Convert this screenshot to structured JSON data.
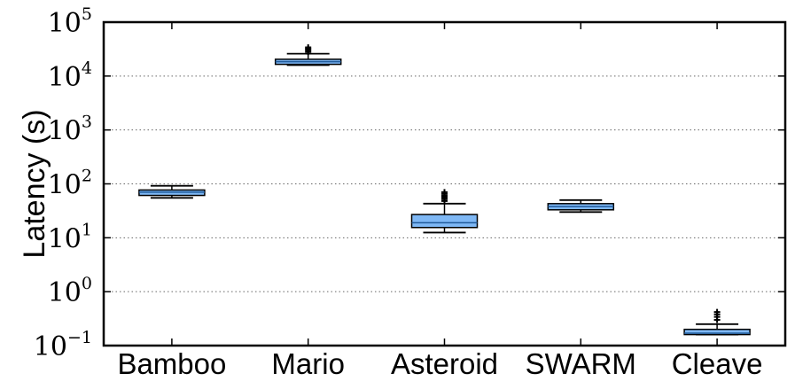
{
  "chart_data": {
    "type": "box",
    "title": "",
    "xlabel": "",
    "ylabel": "Latency (s)",
    "yscale": "log",
    "ylim": [
      0.1,
      100000
    ],
    "yticks": [
      {
        "value": 0.1,
        "base": "10",
        "exp": "−1"
      },
      {
        "value": 1,
        "base": "10",
        "exp": "0"
      },
      {
        "value": 10,
        "base": "10",
        "exp": "1"
      },
      {
        "value": 100,
        "base": "10",
        "exp": "2"
      },
      {
        "value": 1000,
        "base": "10",
        "exp": "3"
      },
      {
        "value": 10000,
        "base": "10",
        "exp": "4"
      },
      {
        "value": 100000,
        "base": "10",
        "exp": "5"
      }
    ],
    "grid": "horizontal-dotted",
    "box_color": "#7fb8f5",
    "categories": [
      "Bamboo",
      "Mario",
      "Asteroid",
      "SWARM",
      "Cleave"
    ],
    "boxes": [
      {
        "category": "Bamboo",
        "whisker_low": 55,
        "q1": 61,
        "median": 70,
        "q3": 77,
        "whisker_high": 92,
        "outliers": []
      },
      {
        "category": "Mario",
        "whisker_low": 16000,
        "q1": 16500,
        "median": 18500,
        "q3": 20500,
        "whisker_high": 26000,
        "outliers": [
          28000,
          30000,
          32000,
          34000
        ]
      },
      {
        "category": "Asteroid",
        "whisker_low": 12.5,
        "q1": 15.5,
        "median": 19,
        "q3": 27,
        "whisker_high": 43,
        "outliers": [
          48,
          52,
          56,
          60,
          65,
          70
        ]
      },
      {
        "category": "SWARM",
        "whisker_low": 30,
        "q1": 33,
        "median": 38,
        "q3": 43,
        "whisker_high": 50,
        "outliers": []
      },
      {
        "category": "Cleave",
        "whisker_low": 0.16,
        "q1": 0.16,
        "median": 0.17,
        "q3": 0.2,
        "whisker_high": 0.25,
        "outliers": [
          0.3,
          0.34,
          0.38,
          0.42
        ]
      }
    ]
  }
}
